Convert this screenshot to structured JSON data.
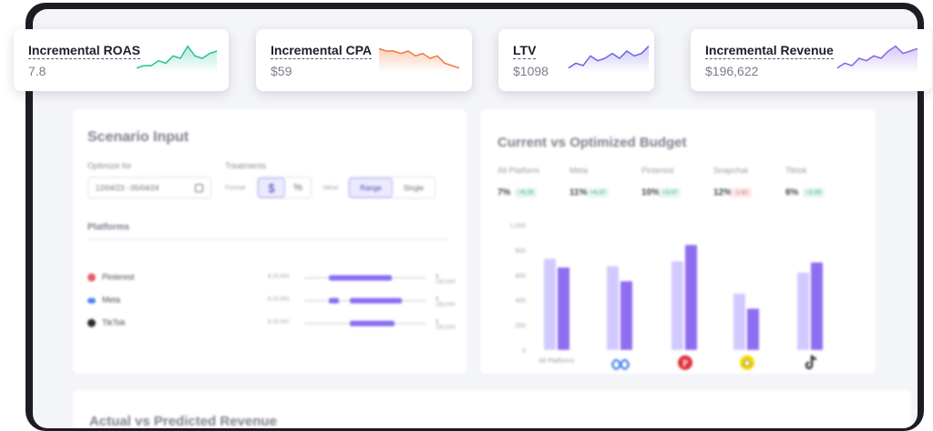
{
  "kpis": [
    {
      "label": "Incremental ROAS",
      "value": "7.8",
      "color": "#2bbf9a",
      "spark": [
        2,
        3,
        3,
        5,
        4,
        7,
        6,
        11,
        7,
        6,
        8,
        9
      ]
    },
    {
      "label": "Incremental CPA",
      "value": "$59",
      "color": "#f07a3c",
      "spark": [
        10,
        9,
        9,
        8,
        9,
        7,
        8,
        6,
        7,
        4,
        3,
        2
      ]
    },
    {
      "label": "LTV",
      "value": "$1098",
      "color": "#6c63e6",
      "spark": [
        2,
        4,
        3,
        7,
        5,
        6,
        8,
        6,
        9,
        7,
        8,
        11
      ]
    },
    {
      "label": "Incremental Revenue",
      "value": "$196,622",
      "color": "#8a63e6",
      "spark": [
        2,
        4,
        3,
        6,
        5,
        7,
        6,
        9,
        11,
        8,
        9,
        10
      ]
    }
  ],
  "scenario": {
    "title": "Scenario Input",
    "optimize_label": "Optimize for",
    "date_range": "12/04/23 - 05/04/24",
    "treatments_label": "Treatments",
    "format_label": "Format",
    "format_options": [
      "$",
      "%"
    ],
    "value_label": "Value",
    "value_options": [
      "Range",
      "Single"
    ],
    "platforms_title": "Platforms",
    "platforms": [
      {
        "name": "Pinterest",
        "icon": "pinterest-icon",
        "min": "$ 25,000",
        "max": "$ 150,000",
        "range": [
          0.2,
          0.72
        ]
      },
      {
        "name": "Meta",
        "icon": "meta-icon",
        "min": "$ 25,000",
        "max": "$ 150,000",
        "range": [
          0.2,
          0.28,
          0.37,
          0.8
        ]
      },
      {
        "name": "TikTok",
        "icon": "tiktok-icon",
        "min": "$ 25,000",
        "max": "$ 150,000",
        "range": [
          0.37,
          0.74
        ]
      }
    ]
  },
  "budget": {
    "title": "Current vs Optimized Budget",
    "stats": [
      {
        "label": "All Platform",
        "value": "7%",
        "delta": "+9.25",
        "up": true
      },
      {
        "label": "Meta",
        "value": "11%",
        "delta": "+4.37",
        "up": true
      },
      {
        "label": "Pinterest",
        "value": "10%",
        "delta": "+3.57",
        "up": true
      },
      {
        "label": "Snapchat",
        "value": "12%",
        "delta": "-1.62",
        "up": false
      },
      {
        "label": "Tiktok",
        "value": "6%",
        "delta": "+2.93",
        "up": true
      }
    ]
  },
  "chart_data": {
    "type": "bar",
    "categories": [
      "All Platforms",
      "Meta",
      "Pinterest",
      "Snapchat",
      "Tiktok"
    ],
    "category_icons": [
      "",
      "meta-icon",
      "pinterest-icon",
      "snapchat-icon",
      "tiktok-icon"
    ],
    "series": [
      {
        "values": [
          730,
          670,
          710,
          450,
          620
        ],
        "color": "#d2caff"
      },
      {
        "values": [
          660,
          550,
          840,
          330,
          700
        ],
        "color": "#8f6df0"
      }
    ],
    "yticks": [
      "1,000",
      "800",
      "600",
      "400",
      "200",
      "0"
    ],
    "ylim": [
      0,
      1000
    ]
  },
  "bottom": {
    "title": "Actual vs Predicted Revenue"
  }
}
